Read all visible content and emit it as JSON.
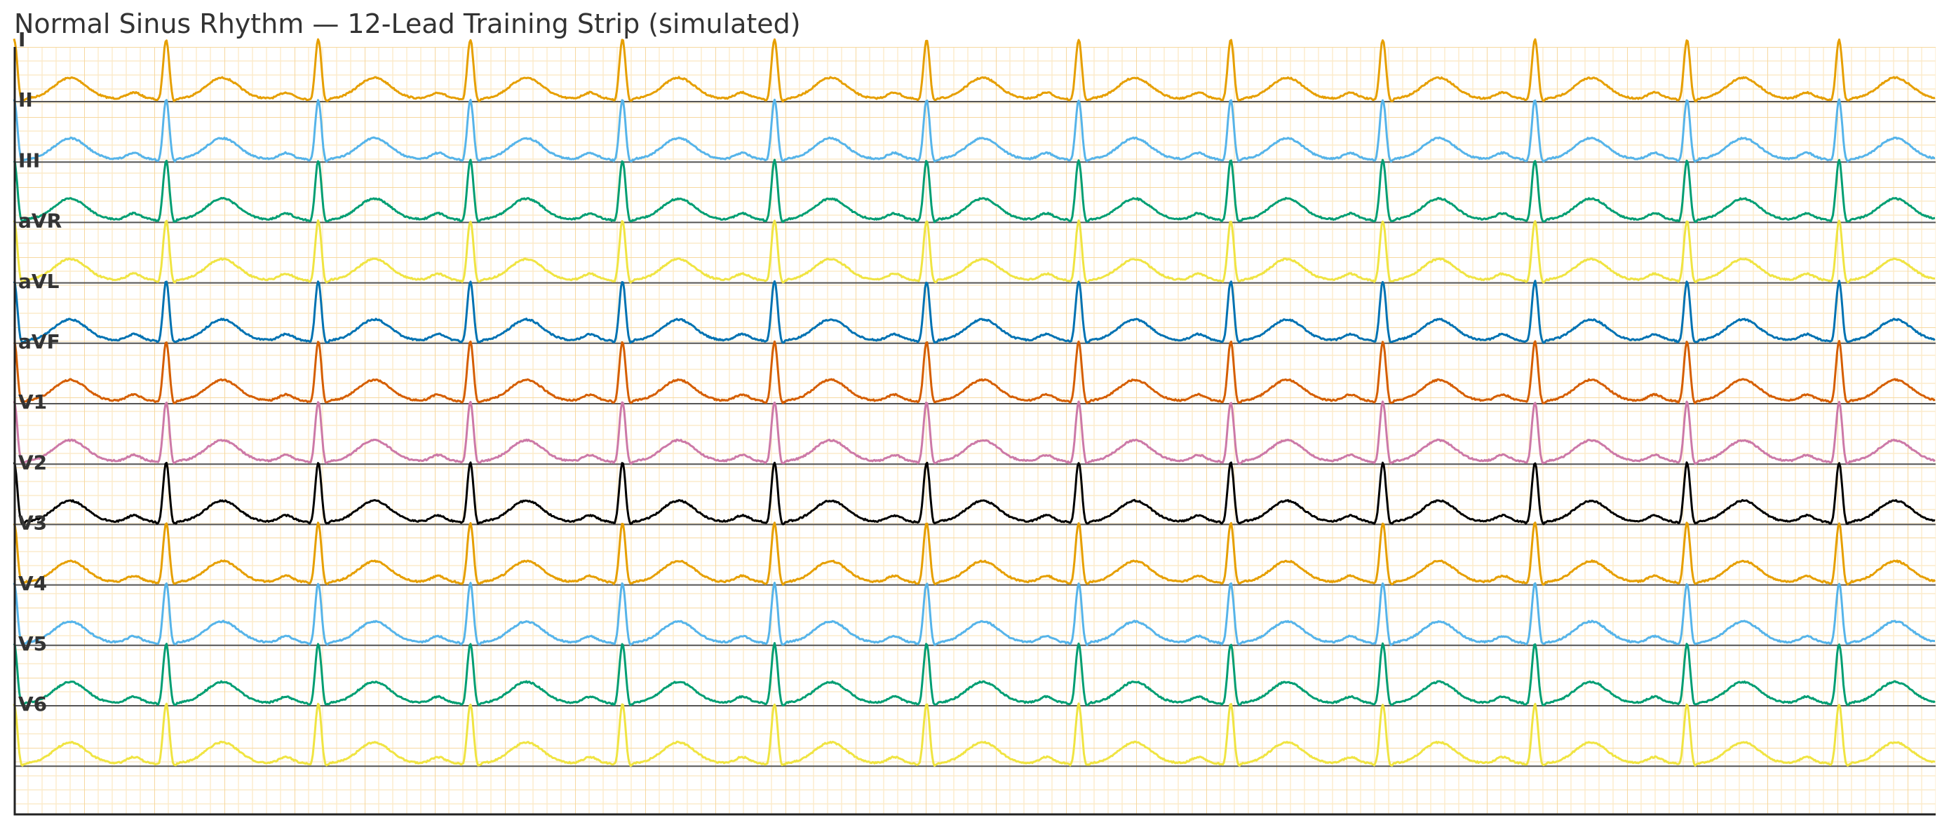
{
  "chart_data": {
    "type": "line",
    "title": "Normal Sinus Rhythm — 12-Lead Training Strip (simulated)",
    "xlabel": "",
    "ylabel": "",
    "grid": true,
    "legend": "none",
    "beats": 12,
    "beat_period_fraction": 0.07914,
    "first_r_fraction": 0.0792,
    "series": [
      {
        "label": "I",
        "color": "#E69F00"
      },
      {
        "label": "II",
        "color": "#56B4E9"
      },
      {
        "label": "III",
        "color": "#009E73"
      },
      {
        "label": "aVR",
        "color": "#F0E442"
      },
      {
        "label": "aVL",
        "color": "#0072B2"
      },
      {
        "label": "aVF",
        "color": "#D55E00"
      },
      {
        "label": "V1",
        "color": "#CC79A7"
      },
      {
        "label": "V2",
        "color": "#000000"
      },
      {
        "label": "V3",
        "color": "#E69F00"
      },
      {
        "label": "V4",
        "color": "#56B4E9"
      },
      {
        "label": "V5",
        "color": "#009E73"
      },
      {
        "label": "V6",
        "color": "#F0E442"
      }
    ]
  }
}
